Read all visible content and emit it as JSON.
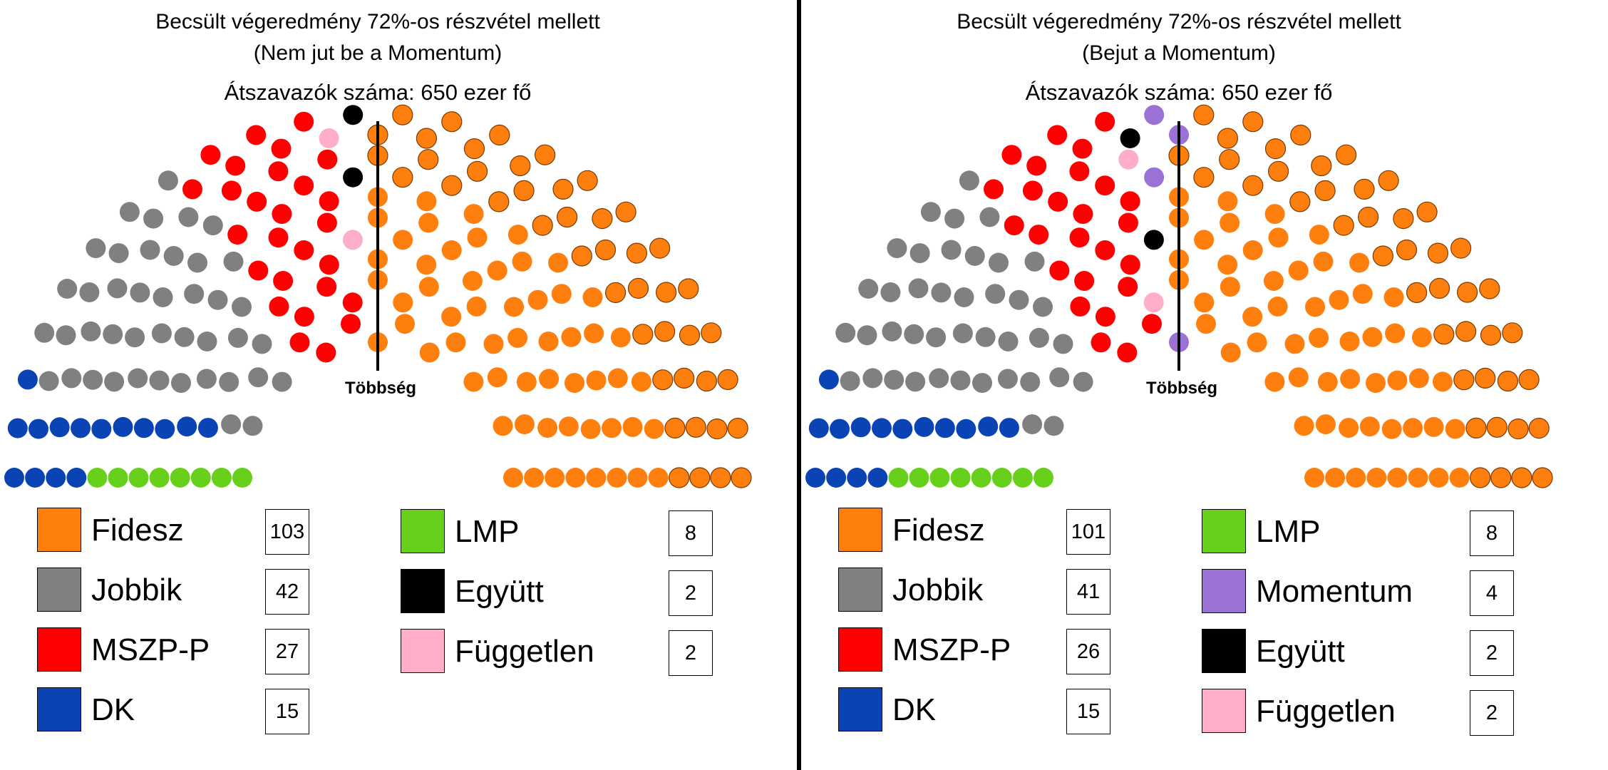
{
  "chart_data": [
    {
      "type": "parliament",
      "title": "Becsült végeredmény 72%-os részvétel mellett",
      "subtitle": "(Nem jut be a Momentum)",
      "note": "Átszavazók száma: 650 ezer fő",
      "majority_label": "Többség",
      "parties": [
        {
          "name": "Fidesz",
          "seats": 103,
          "color": "#ff7f0e"
        },
        {
          "name": "Jobbik",
          "seats": 42,
          "color": "#808080"
        },
        {
          "name": "MSZP-P",
          "seats": 27,
          "color": "#ff0000"
        },
        {
          "name": "DK",
          "seats": 15,
          "color": "#0a44b4"
        },
        {
          "name": "LMP",
          "seats": 8,
          "color": "#66d01a"
        },
        {
          "name": "Együtt",
          "seats": 2,
          "color": "#000000"
        },
        {
          "name": "Független",
          "seats": 2,
          "color": "#ffadc8"
        }
      ],
      "seat_order": [
        "LMP",
        "DK",
        "Jobbik",
        "MSZP-P",
        "Független",
        "Együtt",
        "Fidesz"
      ]
    },
    {
      "type": "parliament",
      "title": "Becsült végeredmény 72%-os részvétel mellett",
      "subtitle": "(Bejut a Momentum)",
      "note": "Átszavazók száma: 650 ezer fő",
      "majority_label": "Többség",
      "parties": [
        {
          "name": "Fidesz",
          "seats": 101,
          "color": "#ff7f0e"
        },
        {
          "name": "Jobbik",
          "seats": 41,
          "color": "#808080"
        },
        {
          "name": "MSZP-P",
          "seats": 26,
          "color": "#ff0000"
        },
        {
          "name": "DK",
          "seats": 15,
          "color": "#0a44b4"
        },
        {
          "name": "LMP",
          "seats": 8,
          "color": "#66d01a"
        },
        {
          "name": "Momentum",
          "seats": 4,
          "color": "#9a72d6"
        },
        {
          "name": "Együtt",
          "seats": 2,
          "color": "#000000"
        },
        {
          "name": "Független",
          "seats": 2,
          "color": "#ffadc8"
        }
      ],
      "seat_order": [
        "LMP",
        "DK",
        "Jobbik",
        "MSZP-P",
        "Független",
        "Együtt",
        "Momentum",
        "Fidesz"
      ]
    }
  ]
}
